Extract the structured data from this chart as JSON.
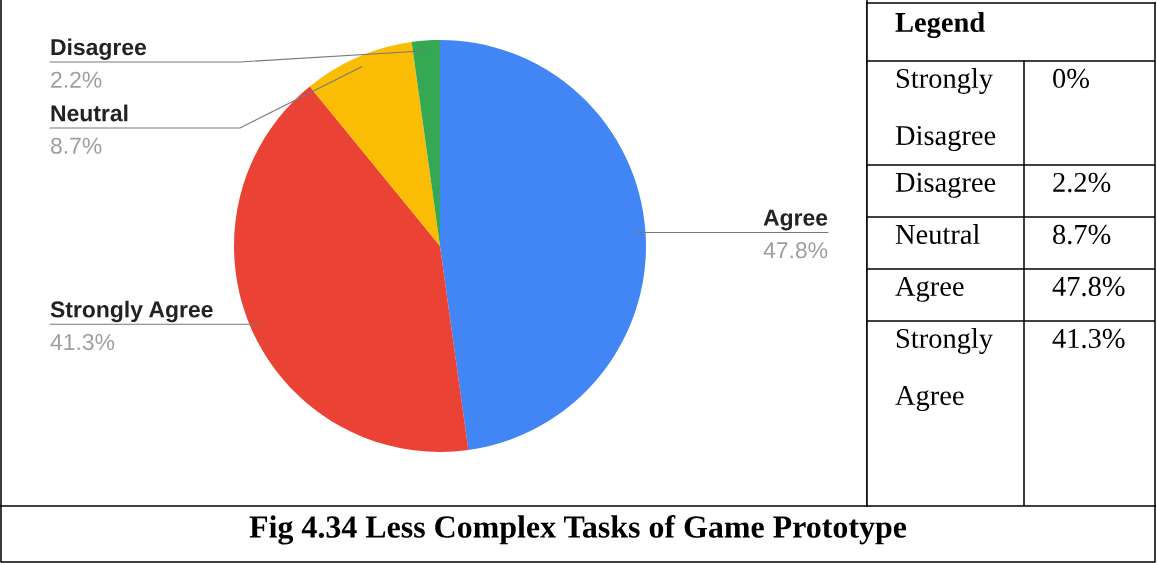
{
  "chart_data": [
    {
      "type": "pie",
      "title": "Fig 4.34 Less Complex Tasks of Game Prototype",
      "categories": [
        "Agree",
        "Strongly Agree",
        "Neutral",
        "Disagree"
      ],
      "values": [
        47.8,
        41.3,
        8.7,
        2.2
      ],
      "colors": [
        "#4285f4",
        "#ea4335",
        "#fbbc04",
        "#34a853"
      ],
      "value_labels": [
        "47.8%",
        "41.3%",
        "8.7%",
        "2.2%"
      ]
    },
    {
      "type": "other",
      "title": "Legend",
      "categories": [
        "Strongly Disagree",
        "Disagree",
        "Neutral",
        "Agree",
        "Strongly Agree"
      ],
      "value_labels": [
        "0%",
        "2.2%",
        "8.7%",
        "47.8%",
        "41.3%"
      ]
    }
  ]
}
